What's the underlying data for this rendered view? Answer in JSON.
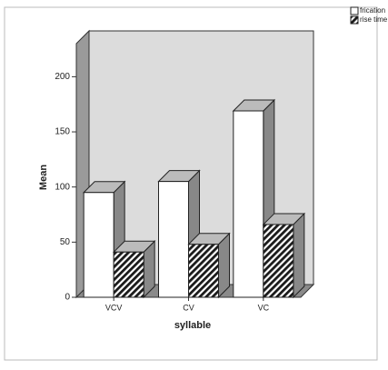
{
  "chart_data": {
    "type": "bar3d",
    "categories": [
      "VCV",
      "CV",
      "VC"
    ],
    "series": [
      {
        "name": "frication",
        "color": "#ffffff",
        "hatch": false,
        "values": [
          95,
          105,
          169
        ]
      },
      {
        "name": "rise time",
        "color": "#1a1a1a",
        "hatch": true,
        "values": [
          41,
          48,
          66
        ]
      }
    ],
    "ylim": [
      0,
      230
    ],
    "yticks": [
      0,
      50,
      100,
      150,
      200
    ],
    "x_label": "syllable",
    "y_label": "Mean",
    "legend": "top-right"
  }
}
